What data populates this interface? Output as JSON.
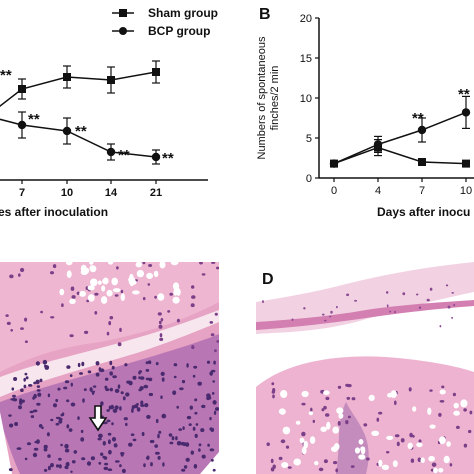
{
  "panel_labels": {
    "b": "B",
    "d": "D"
  },
  "legend": {
    "sham": "Sham group",
    "bcp": "BCP group"
  },
  "chart_data": [
    {
      "type": "line",
      "panel": "A",
      "xlabel": "Days after inoculation",
      "xlabel_visible": "es after inoculation",
      "x": [
        7,
        10,
        14,
        21
      ],
      "x_tick_labels": [
        "7",
        "10",
        "14",
        "21"
      ],
      "series": [
        {
          "name": "Sham group",
          "marker": "square",
          "values": [
            89,
            77,
            80,
            72
          ],
          "errors": [
            10,
            11,
            13,
            11
          ]
        },
        {
          "name": "BCP group",
          "marker": "circle",
          "values": [
            125,
            131,
            152,
            157
          ],
          "errors": [
            13,
            13,
            8,
            7
          ]
        }
      ],
      "annotations": [
        "**",
        "**",
        "**",
        "**",
        "**"
      ],
      "grid": false,
      "legend_position": "top"
    },
    {
      "type": "line",
      "panel": "B",
      "ylabel_line1": "Numbers of spontaneous",
      "ylabel_line2": "finches/2 min",
      "xlabel": "Days after inoculation",
      "xlabel_visible": "Days after inocu",
      "x": [
        0,
        4,
        7,
        10
      ],
      "x_tick_labels": [
        "0",
        "4",
        "7",
        "10"
      ],
      "y_tick_labels": [
        "0",
        "5",
        "10",
        "15",
        "20"
      ],
      "ylim": [
        0,
        20
      ],
      "series": [
        {
          "name": "Sham group",
          "marker": "square",
          "values": [
            1.8,
            3.8,
            2.0,
            1.8
          ],
          "errors": [
            0.3,
            1.0,
            0.2,
            0.3
          ]
        },
        {
          "name": "BCP group",
          "marker": "circle",
          "values": [
            1.8,
            4.2,
            6.0,
            8.2
          ],
          "errors": [
            0.3,
            1.0,
            1.5,
            2.0
          ]
        }
      ],
      "annotations": [
        "**",
        "**"
      ],
      "grid": false
    }
  ],
  "colors": {
    "tissue_pink": "#e8a9c8",
    "nuclei": "#4a2a6e",
    "stroma": "#f4d6e4",
    "background": "#ffffff"
  }
}
